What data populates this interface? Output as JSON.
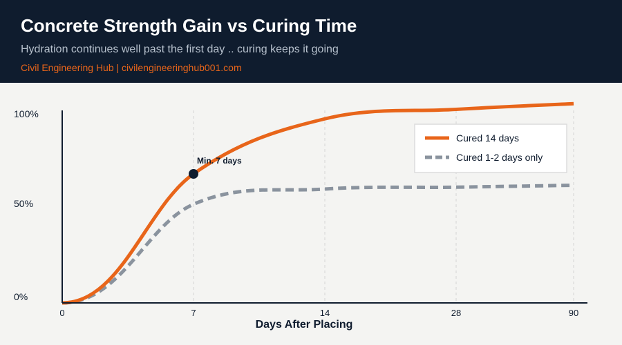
{
  "header": {
    "title": "Concrete Strength Gain vs Curing Time",
    "subtitle": "Hydration continues well past the first day .. curing keeps it going",
    "credit": "Civil Engineering Hub | civilengineeringhub001.com"
  },
  "colors": {
    "header_bg": "#0f1c2e",
    "accent": "#e8651a",
    "dashed_series": "#8a939e",
    "axis": "#0f1c2e",
    "background": "#f4f4f2"
  },
  "chart_data": {
    "type": "line",
    "title": "Concrete Strength Gain vs Curing Time",
    "xlabel": "Days After Placing",
    "ylabel": "",
    "x_ticks": [
      "0",
      "7",
      "14",
      "28",
      "90"
    ],
    "y_ticks": [
      "0%",
      "50%",
      "100%"
    ],
    "y_tick_values": [
      0,
      50,
      100
    ],
    "ylim": [
      0,
      105
    ],
    "grid": "vertical dotted at x ticks",
    "legend_position": "top-right",
    "series": [
      {
        "name": "Cured 14 days",
        "style": "solid",
        "color": "#e8651a",
        "x": [
          0,
          7,
          14,
          28,
          90
        ],
        "y": [
          0,
          68,
          97,
          102,
          105
        ]
      },
      {
        "name": "Cured 1-2 days only",
        "style": "dashed",
        "color": "#8a939e",
        "x": [
          0,
          7,
          14,
          28,
          90
        ],
        "y": [
          0,
          52,
          60,
          61,
          62
        ]
      }
    ],
    "annotations": [
      {
        "text": "Min. 7 days",
        "x": "7",
        "y": 68
      }
    ]
  }
}
